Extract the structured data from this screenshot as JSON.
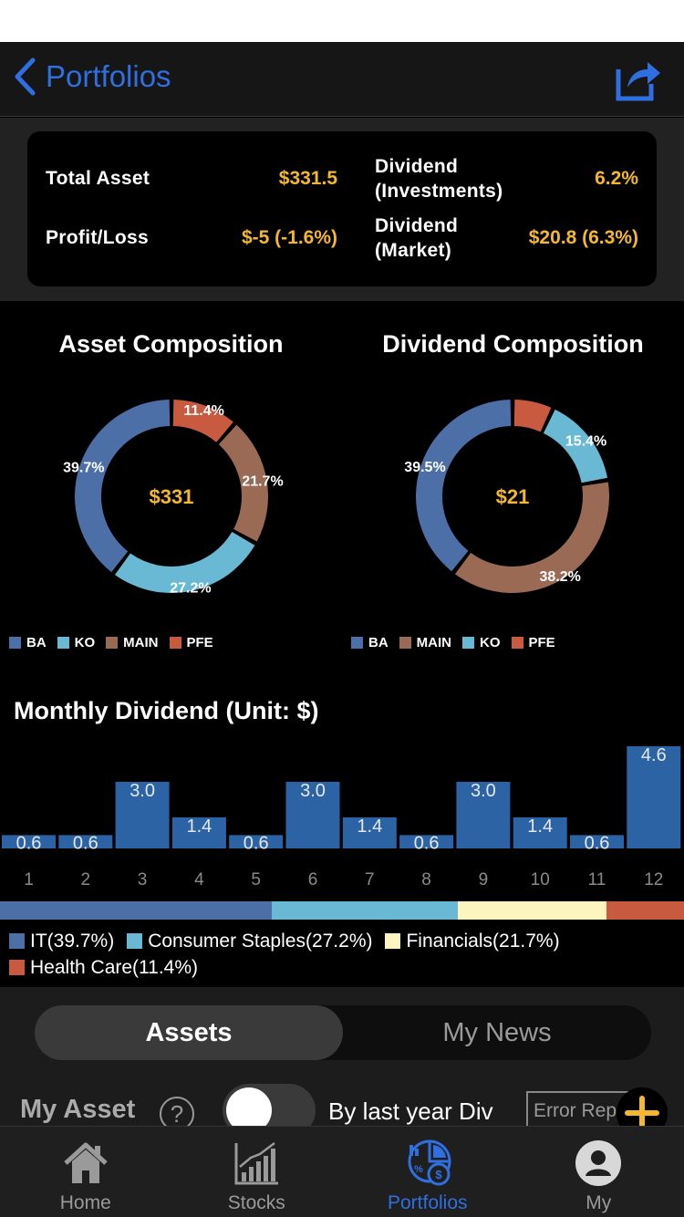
{
  "nav": {
    "back_label": "Portfolios"
  },
  "summary": {
    "total_asset_label": "Total Asset",
    "total_asset_value": "$331.5",
    "profit_loss_label": "Profit/Loss",
    "profit_loss_value": "$-5 (-1.6%)",
    "dividend_investments_label_1": "Dividend",
    "dividend_investments_label_2": "(Investments)",
    "dividend_investments_value": "6.2%",
    "dividend_market_label_1": "Dividend",
    "dividend_market_label_2": "(Market)",
    "dividend_market_value": "$20.8 (6.3%)"
  },
  "asset_composition": {
    "title": "Asset Composition",
    "center_label": "$331",
    "legend": [
      {
        "label": "BA",
        "color": "#4d6fa8"
      },
      {
        "label": "KO",
        "color": "#6ab9d4"
      },
      {
        "label": "MAIN",
        "color": "#9a6a55"
      },
      {
        "label": "PFE",
        "color": "#c85a3f"
      }
    ]
  },
  "dividend_composition": {
    "title": "Dividend Composition",
    "center_label": "$21",
    "legend": [
      {
        "label": "BA",
        "color": "#4d6fa8"
      },
      {
        "label": "MAIN",
        "color": "#9a6a55"
      },
      {
        "label": "KO",
        "color": "#6ab9d4"
      },
      {
        "label": "PFE",
        "color": "#c85a3f"
      }
    ]
  },
  "monthly": {
    "title": "Monthly Dividend (Unit: $)"
  },
  "chart_data": [
    {
      "type": "pie",
      "title": "Asset Composition",
      "center": "$331",
      "slices": [
        {
          "label": "PFE",
          "value": 11.4,
          "display": "11.4%",
          "color": "#c85a3f"
        },
        {
          "label": "MAIN",
          "value": 21.7,
          "display": "21.7%",
          "color": "#9a6a55"
        },
        {
          "label": "KO",
          "value": 27.2,
          "display": "27.2%",
          "color": "#6ab9d4"
        },
        {
          "label": "BA",
          "value": 39.7,
          "display": "39.7%",
          "color": "#4d6fa8"
        }
      ]
    },
    {
      "type": "pie",
      "title": "Dividend Composition",
      "center": "$21",
      "slices": [
        {
          "label": "PFE",
          "value": 6.9,
          "display": "",
          "color": "#c85a3f"
        },
        {
          "label": "KO",
          "value": 15.4,
          "display": "15.4%",
          "color": "#6ab9d4"
        },
        {
          "label": "MAIN",
          "value": 38.2,
          "display": "38.2%",
          "color": "#9a6a55"
        },
        {
          "label": "BA",
          "value": 39.5,
          "display": "39.5%",
          "color": "#4d6fa8"
        }
      ]
    },
    {
      "type": "bar",
      "title": "Monthly Dividend (Unit: $)",
      "categories": [
        "1",
        "2",
        "3",
        "4",
        "5",
        "6",
        "7",
        "8",
        "9",
        "10",
        "11",
        "12"
      ],
      "values": [
        0.6,
        0.6,
        3.0,
        1.4,
        0.6,
        3.0,
        1.4,
        0.6,
        3.0,
        1.4,
        0.6,
        4.6
      ],
      "value_labels": [
        "0.6",
        "0.6",
        "3.0",
        "1.4",
        "0.6",
        "3.0",
        "1.4",
        "0.6",
        "3.0",
        "1.4",
        "0.6",
        "4.6"
      ],
      "ylim": [
        0,
        4.6
      ]
    }
  ],
  "sectors": [
    {
      "label": "IT(39.7%)",
      "value": 39.7,
      "color": "#4d6fa8"
    },
    {
      "label": "Consumer Staples(27.2%)",
      "value": 27.2,
      "color": "#6ab9d4"
    },
    {
      "label": "Financials(21.7%)",
      "value": 21.7,
      "color": "#fdf5c0"
    },
    {
      "label": "Health Care(11.4%)",
      "value": 11.4,
      "color": "#c85a3f"
    }
  ],
  "segment": {
    "assets": "Assets",
    "news": "My News"
  },
  "my_asset": {
    "title": "My Asset",
    "help": "?",
    "toggle_label": "By last year Div",
    "error_button": "Error Report"
  },
  "tabbar": {
    "home": "Home",
    "stocks": "Stocks",
    "portfolios": "Portfolios",
    "my": "My"
  },
  "colors": {
    "accent": "#2f6fe0",
    "gold": "#f5b731",
    "bar": "#2b63a4"
  }
}
